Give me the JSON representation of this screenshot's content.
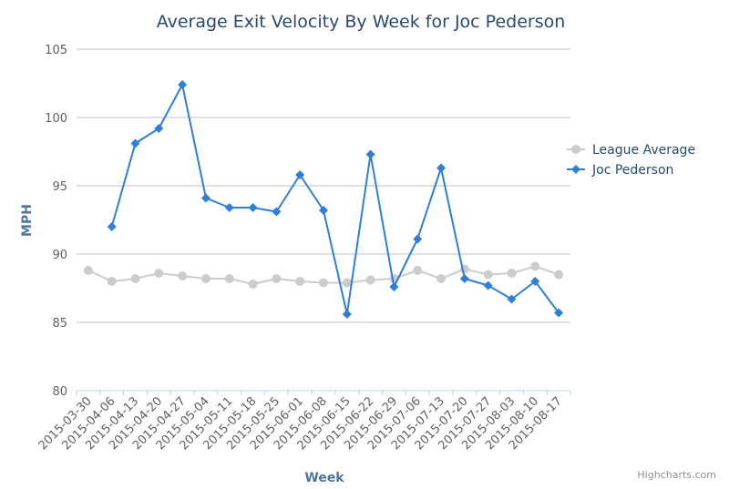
{
  "chart_data": {
    "type": "line",
    "title": "Average Exit Velocity By Week for Joc Pederson",
    "xlabel": "Week",
    "ylabel": "MPH",
    "credits": "Highcharts.com",
    "ylim": [
      80,
      105
    ],
    "yticks": [
      80,
      85,
      90,
      95,
      100,
      105
    ],
    "grid": true,
    "legend_position": "right",
    "categories": [
      "2015-03-30",
      "2015-04-06",
      "2015-04-13",
      "2015-04-20",
      "2015-04-27",
      "2015-05-04",
      "2015-05-11",
      "2015-05-18",
      "2015-05-25",
      "2015-06-01",
      "2015-06-08",
      "2015-06-15",
      "2015-06-22",
      "2015-06-29",
      "2015-07-06",
      "2015-07-13",
      "2015-07-20",
      "2015-07-27",
      "2015-08-03",
      "2015-08-10",
      "2015-08-17"
    ],
    "series": [
      {
        "name": "League Average",
        "color": "#cccccc",
        "marker": "circle",
        "values": [
          88.8,
          88.0,
          88.2,
          88.6,
          88.4,
          88.2,
          88.2,
          87.8,
          88.2,
          88.0,
          87.9,
          87.9,
          88.1,
          88.2,
          88.8,
          88.2,
          88.9,
          88.5,
          88.6,
          89.1,
          88.5
        ]
      },
      {
        "name": "Joc Pederson",
        "color": "#2f7ed8",
        "marker": "diamond",
        "values": [
          null,
          92.0,
          98.1,
          99.2,
          102.4,
          94.1,
          93.4,
          93.4,
          93.1,
          95.8,
          93.2,
          85.6,
          97.3,
          87.6,
          91.1,
          96.3,
          88.2,
          87.7,
          86.7,
          88.0,
          85.7
        ]
      }
    ]
  }
}
